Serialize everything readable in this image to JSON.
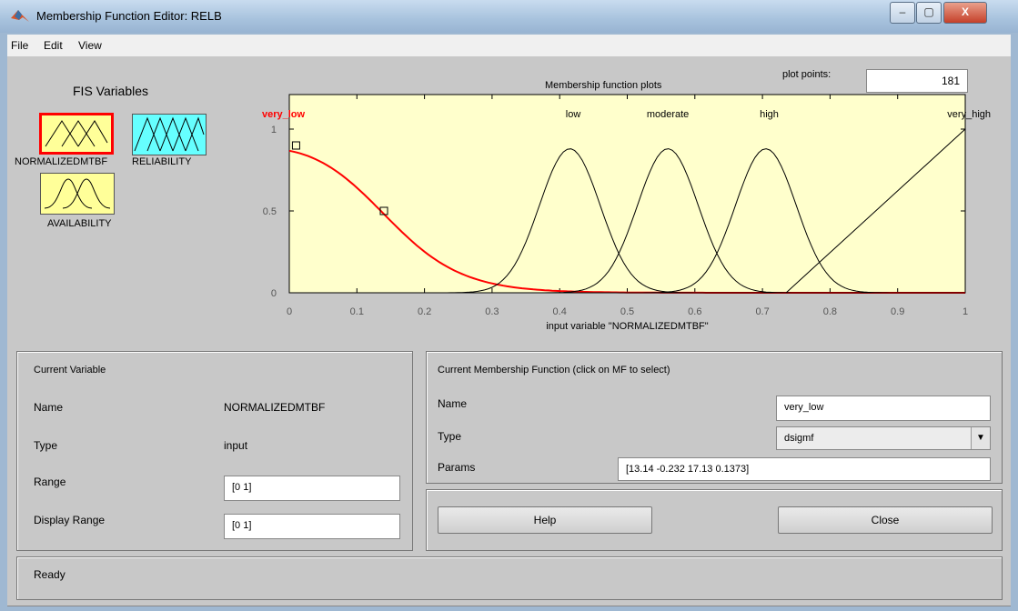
{
  "window": {
    "title": "Membership Function Editor: RELB",
    "buttons": {
      "minimize": "–",
      "maximize": "▢",
      "close": "X"
    }
  },
  "menu": [
    "File",
    "Edit",
    "View"
  ],
  "fis": {
    "title": "FIS Variables",
    "variables": [
      {
        "name": "NORMALIZEDMTBF",
        "color": "#ffff99",
        "selected": true
      },
      {
        "name": "RELIABILITY",
        "color": "#66ffff",
        "selected": false
      },
      {
        "name": "AVAILABILITY",
        "color": "#ffff99",
        "selected": false
      }
    ]
  },
  "plot": {
    "title": "Membership function plots",
    "plot_points_label": "plot points:",
    "plot_points": "181",
    "xlabel": "input variable \"NORMALIZEDMTBF\"",
    "x_ticks": [
      "0",
      "0.1",
      "0.2",
      "0.3",
      "0.4",
      "0.5",
      "0.6",
      "0.7",
      "0.8",
      "0.9",
      "1"
    ],
    "y_ticks": [
      "0",
      "0.5",
      "1"
    ],
    "mf_labels": [
      {
        "text": "very_low",
        "x": 0.0,
        "color": "#ff0000"
      },
      {
        "text": "low",
        "x": 0.42,
        "color": "#000000"
      },
      {
        "text": "moderate",
        "x": 0.56,
        "color": "#000000"
      },
      {
        "text": "high",
        "x": 0.71,
        "color": "#000000"
      },
      {
        "text": "very_high",
        "x": 1.0,
        "color": "#000000"
      }
    ],
    "background": "#ffffcc",
    "selected_color": "#ff0000"
  },
  "chart_data": {
    "type": "line",
    "title": "Membership function plots",
    "xlabel": "input variable \"NORMALIZEDMTBF\"",
    "xlim": [
      0,
      1
    ],
    "ylim": [
      0,
      1
    ],
    "series": [
      {
        "name": "very_low",
        "type": "dsigmf",
        "params": [
          13.14,
          -0.232,
          17.13,
          0.1373
        ],
        "selected": true
      },
      {
        "name": "low",
        "center": 0.415,
        "peak": 0.88,
        "width": 0.045
      },
      {
        "name": "moderate",
        "center": 0.56,
        "peak": 0.88,
        "width": 0.045
      },
      {
        "name": "high",
        "center": 0.705,
        "peak": 0.88,
        "width": 0.045
      },
      {
        "name": "very_high",
        "points": [
          [
            0.735,
            0
          ],
          [
            1.0,
            1.0
          ]
        ]
      }
    ]
  },
  "current_variable": {
    "header": "Current Variable",
    "name_label": "Name",
    "name_value": "NORMALIZEDMTBF",
    "type_label": "Type",
    "type_value": "input",
    "range_label": "Range",
    "range_value": "[0 1]",
    "display_range_label": "Display Range",
    "display_range_value": "[0 1]"
  },
  "current_mf": {
    "header": "Current Membership Function (click on MF to select)",
    "name_label": "Name",
    "name_value": "very_low",
    "type_label": "Type",
    "type_value": "dsigmf",
    "params_label": "Params",
    "params_value": "[13.14 -0.232 17.13 0.1373]"
  },
  "buttons": {
    "help": "Help",
    "close": "Close"
  },
  "status": "Ready"
}
